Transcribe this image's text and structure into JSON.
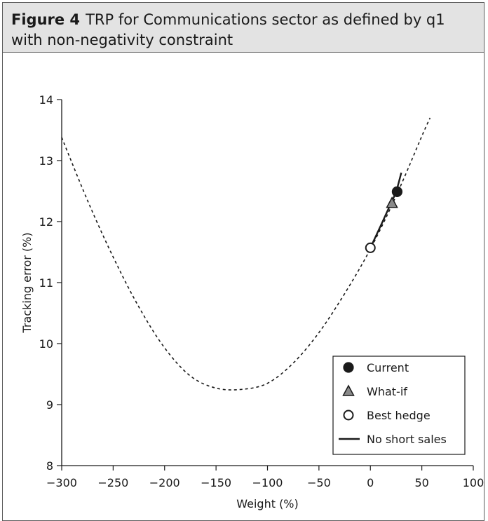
{
  "figure": {
    "label": "Figure 4",
    "caption": "TRP for Communications sector as defined by q1 with non-negativity constraint"
  },
  "chart_data": {
    "type": "line",
    "xlabel": "Weight (%)",
    "ylabel": "Tracking error (%)",
    "xlim": [
      -300,
      100
    ],
    "ylim": [
      8,
      14
    ],
    "xticks": [
      -300,
      -250,
      -200,
      -150,
      -100,
      -50,
      0,
      50,
      100
    ],
    "xtick_labels": [
      "−300",
      "−250",
      "−200",
      "−150",
      "−100",
      "−50",
      "0",
      "50",
      "100"
    ],
    "yticks": [
      8,
      9,
      10,
      11,
      12,
      13,
      14
    ],
    "ytick_labels": [
      "8",
      "9",
      "10",
      "11",
      "12",
      "13",
      "14"
    ],
    "grid": false,
    "curve": {
      "style": "dashed",
      "x": [
        -300,
        -275,
        -250,
        -225,
        -200,
        -175,
        -150,
        -125,
        -100,
        -75,
        -50,
        -25,
        0,
        25,
        50,
        58
      ],
      "y": [
        13.38,
        12.35,
        11.42,
        10.6,
        9.93,
        9.47,
        9.27,
        9.25,
        9.35,
        9.68,
        10.18,
        10.82,
        11.55,
        12.42,
        13.4,
        13.7
      ]
    },
    "no_short_sales": {
      "name": "No short sales",
      "x": [
        0,
        10,
        20,
        25,
        30
      ],
      "y": [
        11.57,
        11.93,
        12.3,
        12.49,
        12.8
      ]
    },
    "points": [
      {
        "name": "Current",
        "x": 26,
        "y": 12.49,
        "marker": "filled-circle"
      },
      {
        "name": "What-if",
        "x": 21,
        "y": 12.3,
        "marker": "gray-triangle"
      },
      {
        "name": "Best hedge",
        "x": 0,
        "y": 11.57,
        "marker": "open-circle"
      }
    ],
    "legend": {
      "position": "lower-right",
      "entries": [
        "Current",
        "What-if",
        "Best hedge",
        "No short sales"
      ]
    },
    "colors": {
      "line": "#1a1a1a",
      "triangle": "#8a8a8a",
      "title_band": "#e3e3e3"
    }
  }
}
